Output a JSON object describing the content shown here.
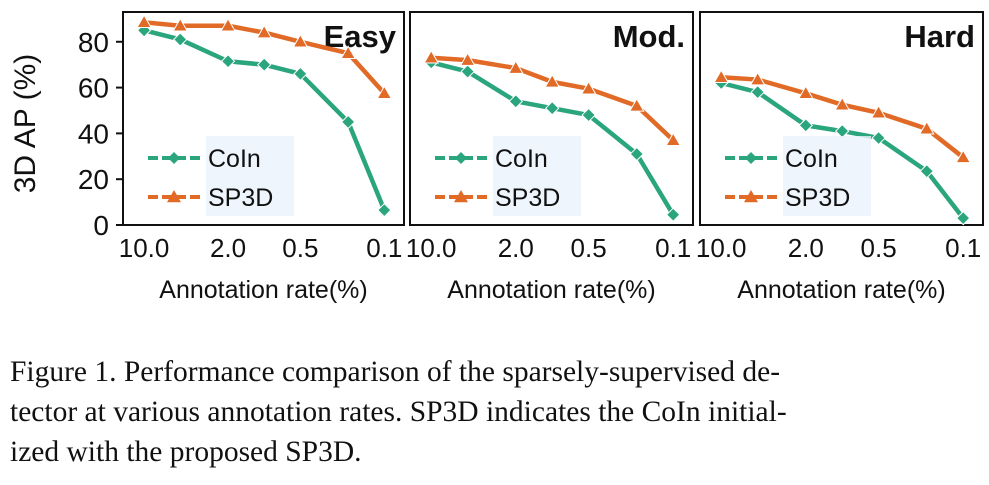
{
  "y_axis_label": "3D AP (%)",
  "chart_data": [
    {
      "type": "line",
      "title": "Easy",
      "xlabel": "Annotation rate(%)",
      "ylabel": "3D AP (%)",
      "x_tick_labels": [
        "10.0",
        "2.0",
        "0.5",
        "0.1"
      ],
      "y_tick_labels": [
        "0",
        "20",
        "40",
        "60",
        "80"
      ],
      "ylim": [
        0,
        93
      ],
      "x": [
        10.0,
        5.0,
        2.0,
        1.0,
        0.5,
        0.2,
        0.1
      ],
      "series": [
        {
          "name": "CoIn",
          "color": "#2aa57e",
          "marker": "diamond",
          "values": [
            85,
            81,
            71.5,
            70,
            66,
            45,
            6.5
          ]
        },
        {
          "name": "SP3D",
          "color": "#e16a26",
          "marker": "triangle",
          "values": [
            88.5,
            87,
            87,
            84,
            80,
            75,
            57.5
          ]
        }
      ],
      "legend": "bottom-left",
      "grid": false
    },
    {
      "type": "line",
      "title": "Mod.",
      "xlabel": "Annotation rate(%)",
      "ylabel": "",
      "x_tick_labels": [
        "10.0",
        "2.0",
        "0.5",
        "0.1"
      ],
      "ylim": [
        0,
        93
      ],
      "x": [
        10.0,
        5.0,
        2.0,
        1.0,
        0.5,
        0.2,
        0.1
      ],
      "series": [
        {
          "name": "CoIn",
          "color": "#2aa57e",
          "marker": "diamond",
          "values": [
            71,
            67,
            54,
            51,
            48,
            31,
            4.5
          ]
        },
        {
          "name": "SP3D",
          "color": "#e16a26",
          "marker": "triangle",
          "values": [
            73,
            72,
            68.5,
            62.5,
            59.5,
            52,
            37
          ]
        }
      ],
      "legend": "bottom-left",
      "grid": false
    },
    {
      "type": "line",
      "title": "Hard",
      "xlabel": "Annotation rate(%)",
      "ylabel": "",
      "x_tick_labels": [
        "10.0",
        "2.0",
        "0.5",
        "0.1"
      ],
      "ylim": [
        0,
        93
      ],
      "x": [
        10.0,
        5.0,
        2.0,
        1.0,
        0.5,
        0.2,
        0.1
      ],
      "series": [
        {
          "name": "CoIn",
          "color": "#2aa57e",
          "marker": "diamond",
          "values": [
            62,
            58,
            43.5,
            41,
            38,
            23.5,
            3
          ]
        },
        {
          "name": "SP3D",
          "color": "#e16a26",
          "marker": "triangle",
          "values": [
            64.5,
            63.5,
            57.5,
            52.5,
            49,
            42,
            29.5
          ]
        }
      ],
      "legend": "bottom-left",
      "grid": false
    }
  ],
  "caption": {
    "lines": [
      "Figure 1. Performance comparison of the sparsely-supervised de-",
      "tector at various annotation rates. SP3D indicates the CoIn initial-",
      "ized with the proposed SP3D."
    ]
  }
}
